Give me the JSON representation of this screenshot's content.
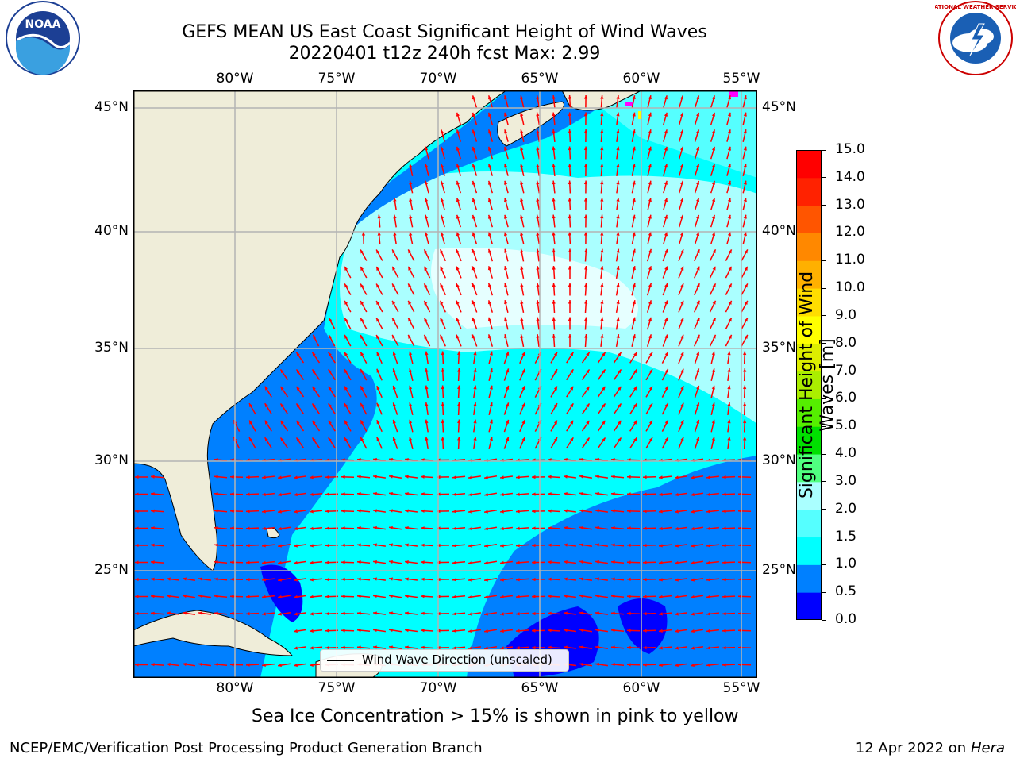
{
  "title": {
    "line1": "GEFS MEAN US East Coast Significant Height of Wind Waves",
    "line2": "20220401 t12z 240h fcst   Max: 2.99"
  },
  "map": {
    "lon_labels": [
      "80°W",
      "75°W",
      "70°W",
      "65°W",
      "60°W",
      "55°W"
    ],
    "lat_labels": [
      "45°N",
      "40°N",
      "35°N",
      "30°N",
      "25°N"
    ],
    "land_color": "#efedd9",
    "gridline_color": "#b4b4b4",
    "arrow_color": "#ff0000",
    "legend_label": "Wind Wave Direction (unscaled)"
  },
  "colorbar": {
    "label_line1": "Significant Height of Wind",
    "label_line2": "Waves [m]",
    "ticks": [
      "0.0",
      "0.5",
      "1.0",
      "1.5",
      "2.0",
      "3.0",
      "4.0",
      "5.0",
      "6.0",
      "7.0",
      "8.0",
      "9.0",
      "10.0",
      "11.0",
      "12.0",
      "13.0",
      "14.0",
      "15.0"
    ],
    "colors": [
      "#0000ff",
      "#0080ff",
      "#00ffff",
      "#55ffff",
      "#aaffff",
      "#50ff80",
      "#00e000",
      "#55ee00",
      "#aaee00",
      "#ddee00",
      "#ffff00",
      "#ffdd00",
      "#ffb000",
      "#ff8800",
      "#ff5500",
      "#ff2200",
      "#ff0000"
    ]
  },
  "note": "Sea Ice Concentration > 15% is shown in pink to yellow",
  "footer": {
    "left": "NCEP/EMC/Verification Post Processing Product Generation Branch",
    "date": "12 Apr 2022 on ",
    "host": "Hera"
  },
  "logos": {
    "noaa": "NOAA",
    "nws": "NATIONAL WEATHER SERVICE"
  }
}
